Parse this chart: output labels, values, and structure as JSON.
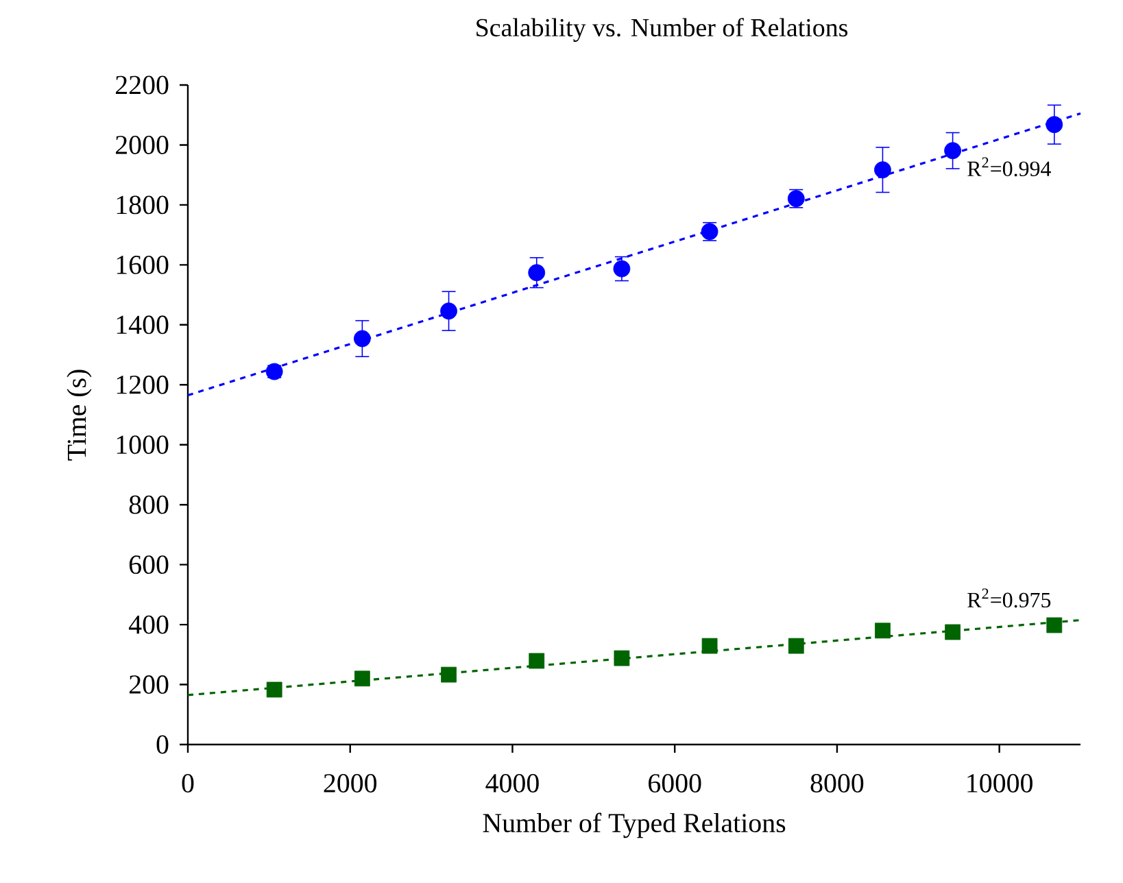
{
  "chart_data": {
    "type": "scatter",
    "title": "Scalability vs. Number of Relations",
    "xlabel": "Number of Typed Relations",
    "ylabel": "Time (s)",
    "xlim": [
      0,
      11000
    ],
    "xticks": [
      0,
      2000,
      4000,
      6000,
      8000,
      10000
    ],
    "ylim": [
      0,
      2200
    ],
    "yticks": [
      0,
      200,
      400,
      600,
      800,
      1000,
      1200,
      1400,
      1600,
      1800,
      2000,
      2200
    ],
    "series": [
      {
        "marker": "circle",
        "color": "#0000ff",
        "x": [
          1066,
          2149,
          3215,
          4298,
          5347,
          6430,
          7496,
          8562,
          9425,
          10677
        ],
        "values": [
          1244,
          1354,
          1446,
          1574,
          1587,
          1711,
          1821,
          1917,
          1981,
          2068
        ],
        "errors": [
          20,
          60,
          65,
          50,
          40,
          30,
          30,
          75,
          60,
          65
        ]
      },
      {
        "marker": "square",
        "color": "#006400",
        "x": [
          1066,
          2149,
          3215,
          4298,
          5347,
          6430,
          7496,
          8562,
          9425,
          10677
        ],
        "values": [
          183,
          220,
          233,
          279,
          288,
          329,
          329,
          380,
          375,
          398
        ]
      },
      {
        "type": "line",
        "line_style": "dashed",
        "marker": "none",
        "color": "#0000ff",
        "x": [
          0,
          11000
        ],
        "values": [
          1165,
          2105
        ]
      },
      {
        "type": "line",
        "line_style": "dashed",
        "marker": "none",
        "color": "#006400",
        "x": [
          0,
          11000
        ],
        "values": [
          165,
          415
        ]
      }
    ],
    "annotations": [
      "R$^{2}$=0.994",
      "R$^{2}$=0.975"
    ]
  }
}
